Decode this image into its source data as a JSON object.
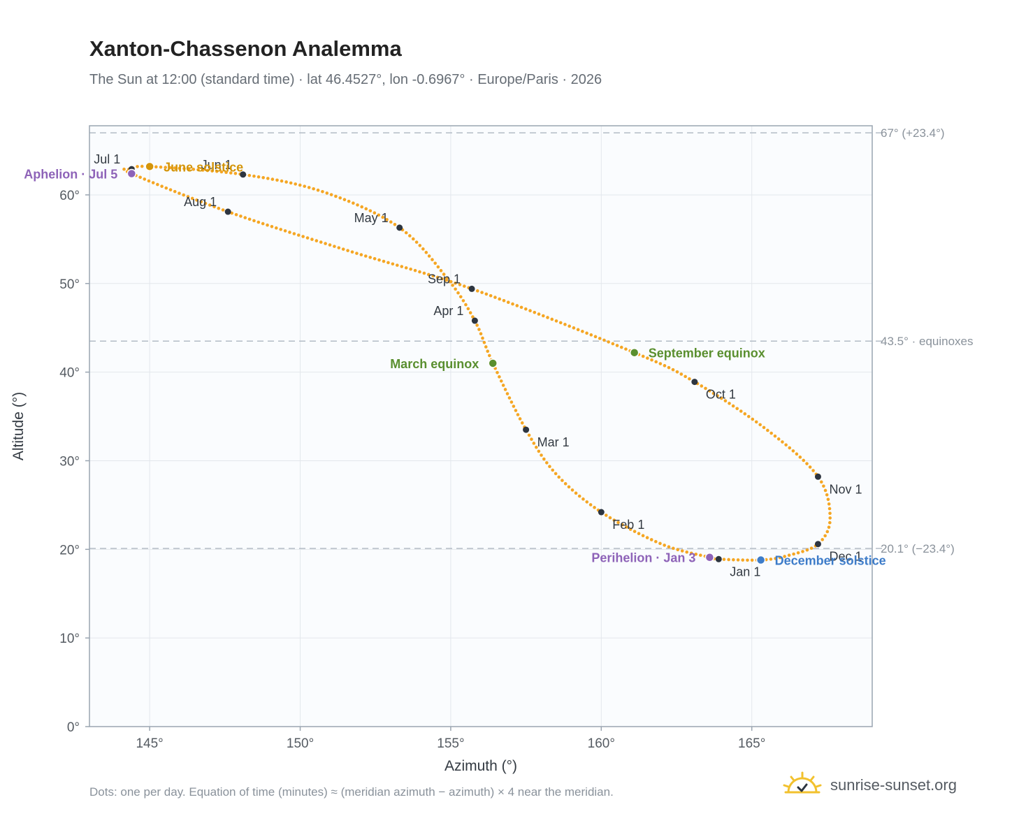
{
  "header": {
    "title": "Xanton-Chassenon Analemma",
    "subtitle": "The Sun at 12:00 (standard time) · lat 46.4527°, lon -0.6967° · Europe/Paris · 2026"
  },
  "footer": {
    "note": "Dots: one per day. Equation of time (minutes) ≈ (meridian azimuth − azimuth) × 4 near the meridian.",
    "brand": "sunrise-sunset.org"
  },
  "colors": {
    "curve": "#f5a623",
    "month_marker": "#2d3540",
    "solstice_june": "#d4950a",
    "solstice_december": "#3d7cc9",
    "equinox": "#5a8f2f",
    "apsis": "#8e63b8",
    "plot_bg": "#fafcfe",
    "grid": "#e3e7ec",
    "axis": "#9aa5b1",
    "reference_line": "#b3bcc6"
  },
  "chart_data": {
    "type": "scatter",
    "xlabel": "Azimuth (°)",
    "ylabel": "Altitude (°)",
    "xlim": [
      143,
      169
    ],
    "ylim": [
      0,
      67.8
    ],
    "x_ticks": [
      145,
      150,
      155,
      160,
      165
    ],
    "x_tick_labels": [
      "145°",
      "150°",
      "155°",
      "160°",
      "165°"
    ],
    "y_ticks": [
      0,
      10,
      20,
      30,
      40,
      50,
      60
    ],
    "y_tick_labels": [
      "0°",
      "10°",
      "20°",
      "30°",
      "40°",
      "50°",
      "60°"
    ],
    "grid": true,
    "reference_lines": [
      {
        "y": 67.0,
        "label": "67° (+23.4°)"
      },
      {
        "y": 43.5,
        "label": "43.5° · equinoxes"
      },
      {
        "y": 20.1,
        "label": "20.1° (−23.4°)"
      }
    ],
    "daily_path": [
      {
        "day": 1,
        "x": 163.9,
        "y": 18.9
      },
      {
        "day": 3,
        "x": 163.6,
        "y": 19.1
      },
      {
        "day": 15,
        "x": 162.0,
        "y": 20.6
      },
      {
        "day": 32,
        "x": 160.0,
        "y": 24.2
      },
      {
        "day": 46,
        "x": 158.5,
        "y": 28.5
      },
      {
        "day": 60,
        "x": 157.5,
        "y": 33.5
      },
      {
        "day": 79,
        "x": 156.4,
        "y": 41.0
      },
      {
        "day": 91,
        "x": 155.8,
        "y": 45.8
      },
      {
        "day": 105,
        "x": 154.9,
        "y": 50.5
      },
      {
        "day": 121,
        "x": 153.3,
        "y": 56.3
      },
      {
        "day": 136,
        "x": 150.8,
        "y": 60.3
      },
      {
        "day": 152,
        "x": 148.1,
        "y": 62.3
      },
      {
        "day": 172,
        "x": 145.0,
        "y": 63.2
      },
      {
        "day": 182,
        "x": 144.4,
        "y": 62.9
      },
      {
        "day": 186,
        "x": 144.4,
        "y": 62.4
      },
      {
        "day": 213,
        "x": 147.6,
        "y": 58.1
      },
      {
        "day": 230,
        "x": 151.5,
        "y": 53.8
      },
      {
        "day": 244,
        "x": 155.7,
        "y": 49.4
      },
      {
        "day": 265,
        "x": 161.1,
        "y": 42.2
      },
      {
        "day": 274,
        "x": 163.1,
        "y": 38.9
      },
      {
        "day": 290,
        "x": 165.5,
        "y": 33.5
      },
      {
        "day": 305,
        "x": 167.2,
        "y": 28.2
      },
      {
        "day": 320,
        "x": 167.6,
        "y": 23.5
      },
      {
        "day": 335,
        "x": 167.2,
        "y": 20.6
      },
      {
        "day": 345,
        "x": 166.2,
        "y": 19.3
      },
      {
        "day": 355,
        "x": 165.3,
        "y": 18.8
      },
      {
        "day": 366,
        "x": 163.9,
        "y": 18.9
      }
    ],
    "month_markers": [
      {
        "label": "Jan 1",
        "x": 163.9,
        "y": 18.9,
        "anchor": "below-right"
      },
      {
        "label": "Feb 1",
        "x": 160.0,
        "y": 24.2,
        "anchor": "below-right"
      },
      {
        "label": "Mar 1",
        "x": 157.5,
        "y": 33.5,
        "anchor": "below-right"
      },
      {
        "label": "Apr 1",
        "x": 155.8,
        "y": 45.8,
        "anchor": "above-left"
      },
      {
        "label": "May 1",
        "x": 153.3,
        "y": 56.3,
        "anchor": "above-left"
      },
      {
        "label": "Jun 1",
        "x": 148.1,
        "y": 62.3,
        "anchor": "above-left"
      },
      {
        "label": "Jul 1",
        "x": 144.4,
        "y": 62.9,
        "anchor": "above-left"
      },
      {
        "label": "Aug 1",
        "x": 147.6,
        "y": 58.1,
        "anchor": "above-left"
      },
      {
        "label": "Sep 1",
        "x": 155.7,
        "y": 49.4,
        "anchor": "above-left"
      },
      {
        "label": "Oct 1",
        "x": 163.1,
        "y": 38.9,
        "anchor": "below-right"
      },
      {
        "label": "Nov 1",
        "x": 167.2,
        "y": 28.2,
        "anchor": "below-right"
      },
      {
        "label": "Dec 1",
        "x": 167.2,
        "y": 20.6,
        "anchor": "below-right"
      }
    ],
    "events": [
      {
        "label": "June solstice",
        "x": 145.0,
        "y": 63.2,
        "color_key": "solstice_june",
        "side": "right"
      },
      {
        "label": "December solstice",
        "x": 165.3,
        "y": 18.8,
        "color_key": "solstice_december",
        "side": "right"
      },
      {
        "label": "March equinox",
        "x": 156.4,
        "y": 41.0,
        "color_key": "equinox",
        "side": "left"
      },
      {
        "label": "September equinox",
        "x": 161.1,
        "y": 42.2,
        "color_key": "equinox",
        "side": "right"
      },
      {
        "label": "Aphelion · Jul 5",
        "x": 144.4,
        "y": 62.4,
        "color_key": "apsis",
        "side": "left"
      },
      {
        "label": "Perihelion · Jan 3",
        "x": 163.6,
        "y": 19.1,
        "color_key": "apsis",
        "side": "left"
      }
    ]
  }
}
